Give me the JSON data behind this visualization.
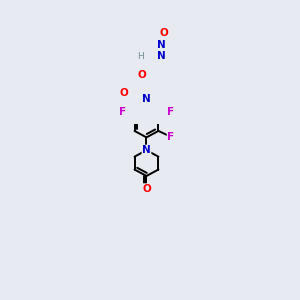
{
  "background_color": "#e8eaf2",
  "line_color": "#000000",
  "bond_width": 1.4,
  "atom_colors": {
    "O": "#ff0000",
    "N": "#0000cc",
    "F": "#cc00cc",
    "C": "#000000",
    "H": "#6e8f8f"
  }
}
